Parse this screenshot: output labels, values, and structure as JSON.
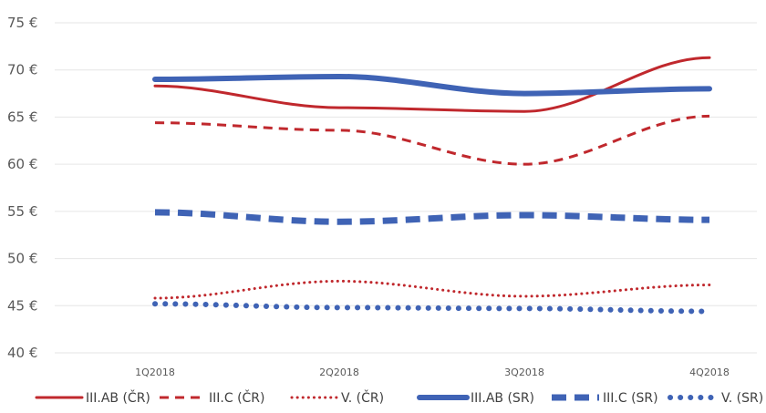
{
  "chart_data": {
    "type": "line",
    "title": "",
    "xlabel": "",
    "ylabel": "",
    "categories": [
      "1Q2018",
      "2Q2018",
      "3Q2018",
      "4Q2018"
    ],
    "y_ticks": [
      "40 €",
      "45 €",
      "50 €",
      "55 €",
      "60 €",
      "65 €",
      "70 €",
      "75 €"
    ],
    "ylim": [
      40,
      75
    ],
    "grid": true,
    "legend_position": "bottom",
    "series": [
      {
        "name": "III.AB (ČR)",
        "values": [
          68.3,
          66.0,
          65.6,
          71.3
        ],
        "color": "#c0282d",
        "style": "solid",
        "weight": "thin"
      },
      {
        "name": "III.C (ČR)",
        "values": [
          64.4,
          63.6,
          60.0,
          65.1
        ],
        "color": "#c0282d",
        "style": "dashed",
        "weight": "thin"
      },
      {
        "name": "V. (ČR)",
        "values": [
          45.8,
          47.6,
          46.0,
          47.2
        ],
        "color": "#c0282d",
        "style": "dotted",
        "weight": "thin"
      },
      {
        "name": "III.AB (SR)",
        "values": [
          69.0,
          69.3,
          67.5,
          68.0
        ],
        "color": "#3f63b5",
        "style": "solid",
        "weight": "thick"
      },
      {
        "name": "III.C (SR)",
        "values": [
          54.9,
          53.9,
          54.6,
          54.1
        ],
        "color": "#3f63b5",
        "style": "dashed",
        "weight": "thick"
      },
      {
        "name": "V. (SR)",
        "values": [
          45.2,
          44.8,
          44.7,
          44.4
        ],
        "color": "#3f63b5",
        "style": "dotted",
        "weight": "thick"
      }
    ]
  }
}
